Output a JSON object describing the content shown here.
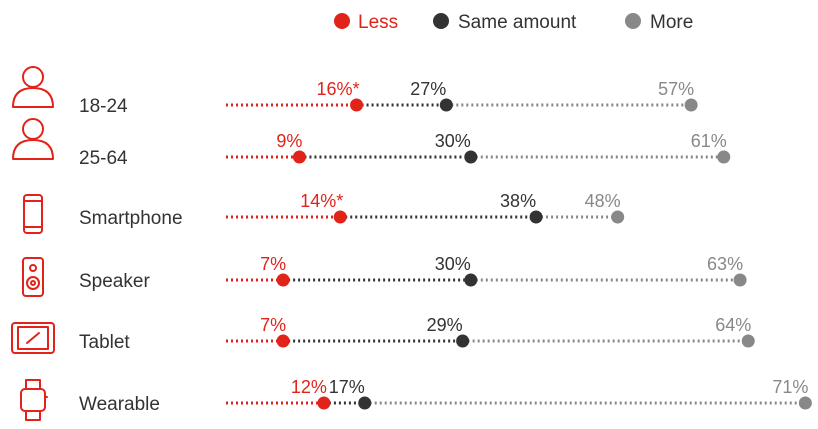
{
  "legend": [
    {
      "label": "Less",
      "color": "#e2231a"
    },
    {
      "label": "Same amount",
      "color": "#333333"
    },
    {
      "label": "More",
      "color": "#888888"
    }
  ],
  "colors": {
    "less": "#e2231a",
    "same": "#333333",
    "more": "#888888",
    "text": "#333333"
  },
  "icons": [
    "person-icon",
    "person-icon",
    "smartphone-icon",
    "speaker-icon",
    "tablet-icon",
    "wearable-icon"
  ],
  "chart_data": {
    "type": "scatter",
    "title": "",
    "categories": [
      "18-24",
      "25-64",
      "Smartphone",
      "Speaker",
      "Tablet",
      "Wearable"
    ],
    "series": [
      {
        "name": "Less",
        "values": [
          16,
          9,
          14,
          7,
          7,
          12
        ],
        "labels": [
          "16%*",
          "9%",
          "14%*",
          "7%",
          "7%",
          "12%"
        ]
      },
      {
        "name": "Same amount",
        "values": [
          27,
          30,
          38,
          30,
          29,
          17
        ],
        "labels": [
          "27%",
          "30%",
          "38%",
          "30%",
          "29%",
          "17%"
        ]
      },
      {
        "name": "More",
        "values": [
          57,
          61,
          48,
          63,
          64,
          71
        ],
        "labels": [
          "57%",
          "61%",
          "48%",
          "63%",
          "64%",
          "71%"
        ]
      }
    ],
    "xlim": [
      0,
      100
    ],
    "grid": false,
    "legend_position": "top"
  }
}
